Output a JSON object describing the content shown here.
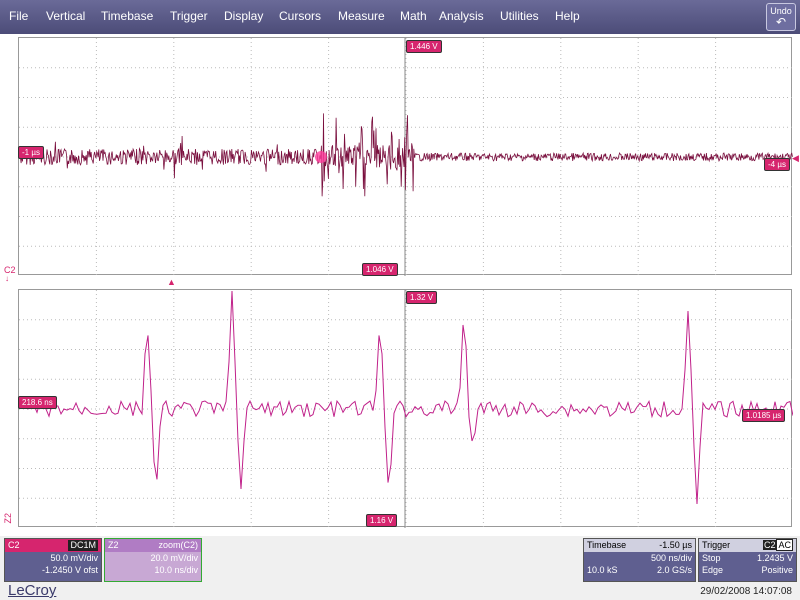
{
  "menu": {
    "items": [
      "File",
      "Vertical",
      "Timebase",
      "Trigger",
      "Display",
      "Cursors",
      "Measure",
      "Math",
      "Analysis",
      "Utilities",
      "Help"
    ],
    "undo_label": "Undo"
  },
  "upper_grid": {
    "top_cursor_label": "1.446 V",
    "bottom_cursor_label": "1.046 V",
    "left_time_label": "-1 µs",
    "right_time_label": "-4 µs",
    "trace_color": "#7a0f3e"
  },
  "channel_marker": {
    "c2": "C2",
    "z2": "Z2"
  },
  "lower_grid": {
    "top_cursor_label": "1.32 V",
    "bottom_cursor_label": "1.16 V",
    "left_time_label": "218.6 ns",
    "right_time_label": "1.0185 µs",
    "trace_color": "#c0218a"
  },
  "c2_box": {
    "name": "C2",
    "coupling": "DC1M",
    "vdiv": "50.0 mV/div",
    "offset": "-1.2450 V ofst",
    "color": "#d6256e"
  },
  "z2_box": {
    "name": "Z2",
    "source": "zoom(C2)",
    "vdiv": "20.0 mV/div",
    "tdiv": "10.0 ns/div",
    "color": "#b080c0"
  },
  "timebase_box": {
    "title": "Timebase",
    "delay": "-1.50 µs",
    "tdiv": "500 ns/div",
    "samples": "10.0 kS",
    "rate": "2.0 GS/s"
  },
  "trigger_box": {
    "title": "Trigger",
    "channel": "C2",
    "coupling": "AC",
    "mode": "Stop",
    "level": "1.2435 V",
    "type": "Edge",
    "slope": "Positive"
  },
  "footer": {
    "brand": "LeCroy",
    "datetime": "29/02/2008 14:07:08"
  }
}
